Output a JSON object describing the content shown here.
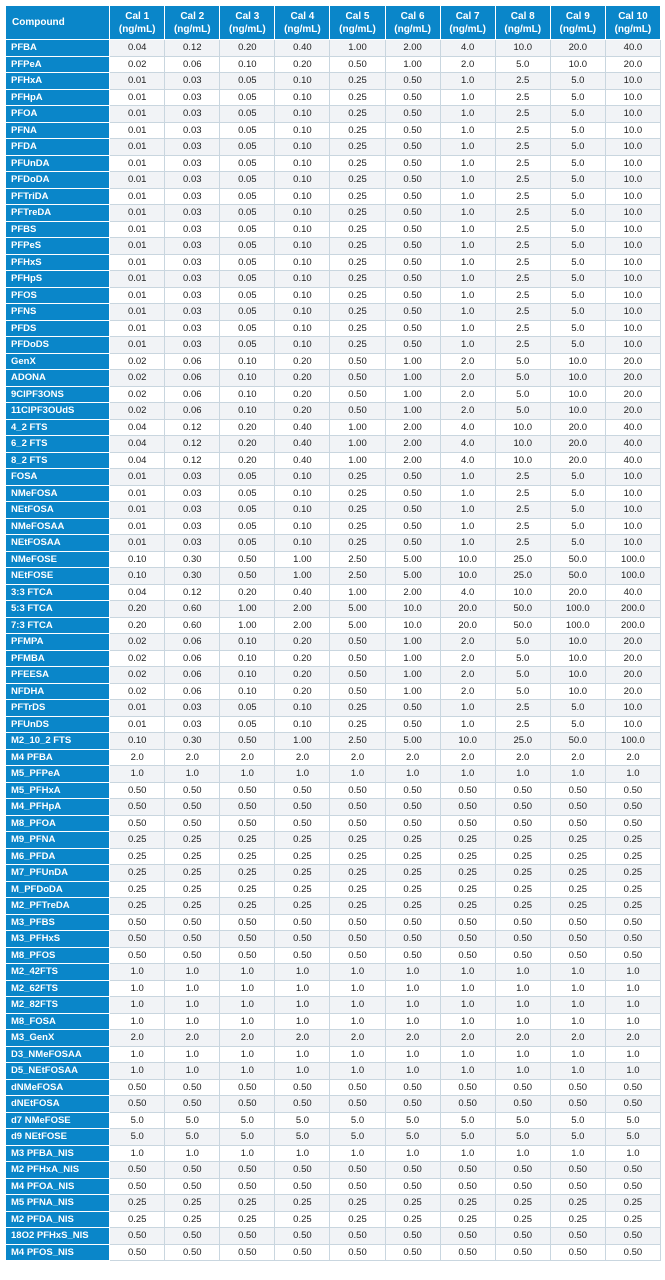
{
  "table": {
    "header_compound": "Compound",
    "cal_headers": [
      {
        "label": "Cal 1",
        "unit": "(ng/mL)"
      },
      {
        "label": "Cal 2",
        "unit": "(ng/mL)"
      },
      {
        "label": "Cal 3",
        "unit": "(ng/mL)"
      },
      {
        "label": "Cal 4",
        "unit": "(ng/mL)"
      },
      {
        "label": "Cal 5",
        "unit": "(ng/mL)"
      },
      {
        "label": "Cal 6",
        "unit": "(ng/mL)"
      },
      {
        "label": "Cal 7",
        "unit": "(ng/mL)"
      },
      {
        "label": "Cal 8",
        "unit": "(ng/mL)"
      },
      {
        "label": "Cal 9",
        "unit": "(ng/mL)"
      },
      {
        "label": "Cal 10",
        "unit": "(ng/mL)"
      }
    ],
    "rows": [
      {
        "name": "PFBA",
        "values": [
          "0.04",
          "0.12",
          "0.20",
          "0.40",
          "1.00",
          "2.00",
          "4.0",
          "10.0",
          "20.0",
          "40.0"
        ]
      },
      {
        "name": "PFPeA",
        "values": [
          "0.02",
          "0.06",
          "0.10",
          "0.20",
          "0.50",
          "1.00",
          "2.0",
          "5.0",
          "10.0",
          "20.0"
        ]
      },
      {
        "name": "PFHxA",
        "values": [
          "0.01",
          "0.03",
          "0.05",
          "0.10",
          "0.25",
          "0.50",
          "1.0",
          "2.5",
          "5.0",
          "10.0"
        ]
      },
      {
        "name": "PFHpA",
        "values": [
          "0.01",
          "0.03",
          "0.05",
          "0.10",
          "0.25",
          "0.50",
          "1.0",
          "2.5",
          "5.0",
          "10.0"
        ]
      },
      {
        "name": "PFOA",
        "values": [
          "0.01",
          "0.03",
          "0.05",
          "0.10",
          "0.25",
          "0.50",
          "1.0",
          "2.5",
          "5.0",
          "10.0"
        ]
      },
      {
        "name": "PFNA",
        "values": [
          "0.01",
          "0.03",
          "0.05",
          "0.10",
          "0.25",
          "0.50",
          "1.0",
          "2.5",
          "5.0",
          "10.0"
        ]
      },
      {
        "name": "PFDA",
        "values": [
          "0.01",
          "0.03",
          "0.05",
          "0.10",
          "0.25",
          "0.50",
          "1.0",
          "2.5",
          "5.0",
          "10.0"
        ]
      },
      {
        "name": "PFUnDA",
        "values": [
          "0.01",
          "0.03",
          "0.05",
          "0.10",
          "0.25",
          "0.50",
          "1.0",
          "2.5",
          "5.0",
          "10.0"
        ]
      },
      {
        "name": "PFDoDA",
        "values": [
          "0.01",
          "0.03",
          "0.05",
          "0.10",
          "0.25",
          "0.50",
          "1.0",
          "2.5",
          "5.0",
          "10.0"
        ]
      },
      {
        "name": "PFTriDA",
        "values": [
          "0.01",
          "0.03",
          "0.05",
          "0.10",
          "0.25",
          "0.50",
          "1.0",
          "2.5",
          "5.0",
          "10.0"
        ]
      },
      {
        "name": "PFTreDA",
        "values": [
          "0.01",
          "0.03",
          "0.05",
          "0.10",
          "0.25",
          "0.50",
          "1.0",
          "2.5",
          "5.0",
          "10.0"
        ]
      },
      {
        "name": "PFBS",
        "values": [
          "0.01",
          "0.03",
          "0.05",
          "0.10",
          "0.25",
          "0.50",
          "1.0",
          "2.5",
          "5.0",
          "10.0"
        ]
      },
      {
        "name": "PFPeS",
        "values": [
          "0.01",
          "0.03",
          "0.05",
          "0.10",
          "0.25",
          "0.50",
          "1.0",
          "2.5",
          "5.0",
          "10.0"
        ]
      },
      {
        "name": "PFHxS",
        "values": [
          "0.01",
          "0.03",
          "0.05",
          "0.10",
          "0.25",
          "0.50",
          "1.0",
          "2.5",
          "5.0",
          "10.0"
        ]
      },
      {
        "name": "PFHpS",
        "values": [
          "0.01",
          "0.03",
          "0.05",
          "0.10",
          "0.25",
          "0.50",
          "1.0",
          "2.5",
          "5.0",
          "10.0"
        ]
      },
      {
        "name": "PFOS",
        "values": [
          "0.01",
          "0.03",
          "0.05",
          "0.10",
          "0.25",
          "0.50",
          "1.0",
          "2.5",
          "5.0",
          "10.0"
        ]
      },
      {
        "name": "PFNS",
        "values": [
          "0.01",
          "0.03",
          "0.05",
          "0.10",
          "0.25",
          "0.50",
          "1.0",
          "2.5",
          "5.0",
          "10.0"
        ]
      },
      {
        "name": "PFDS",
        "values": [
          "0.01",
          "0.03",
          "0.05",
          "0.10",
          "0.25",
          "0.50",
          "1.0",
          "2.5",
          "5.0",
          "10.0"
        ]
      },
      {
        "name": "PFDoDS",
        "values": [
          "0.01",
          "0.03",
          "0.05",
          "0.10",
          "0.25",
          "0.50",
          "1.0",
          "2.5",
          "5.0",
          "10.0"
        ]
      },
      {
        "name": "GenX",
        "values": [
          "0.02",
          "0.06",
          "0.10",
          "0.20",
          "0.50",
          "1.00",
          "2.0",
          "5.0",
          "10.0",
          "20.0"
        ]
      },
      {
        "name": "ADONA",
        "values": [
          "0.02",
          "0.06",
          "0.10",
          "0.20",
          "0.50",
          "1.00",
          "2.0",
          "5.0",
          "10.0",
          "20.0"
        ]
      },
      {
        "name": "9ClPF3ONS",
        "values": [
          "0.02",
          "0.06",
          "0.10",
          "0.20",
          "0.50",
          "1.00",
          "2.0",
          "5.0",
          "10.0",
          "20.0"
        ]
      },
      {
        "name": "11ClPF3OUdS",
        "values": [
          "0.02",
          "0.06",
          "0.10",
          "0.20",
          "0.50",
          "1.00",
          "2.0",
          "5.0",
          "10.0",
          "20.0"
        ]
      },
      {
        "name": "4_2 FTS",
        "values": [
          "0.04",
          "0.12",
          "0.20",
          "0.40",
          "1.00",
          "2.00",
          "4.0",
          "10.0",
          "20.0",
          "40.0"
        ]
      },
      {
        "name": "6_2 FTS",
        "values": [
          "0.04",
          "0.12",
          "0.20",
          "0.40",
          "1.00",
          "2.00",
          "4.0",
          "10.0",
          "20.0",
          "40.0"
        ]
      },
      {
        "name": "8_2 FTS",
        "values": [
          "0.04",
          "0.12",
          "0.20",
          "0.40",
          "1.00",
          "2.00",
          "4.0",
          "10.0",
          "20.0",
          "40.0"
        ]
      },
      {
        "name": "FOSA",
        "values": [
          "0.01",
          "0.03",
          "0.05",
          "0.10",
          "0.25",
          "0.50",
          "1.0",
          "2.5",
          "5.0",
          "10.0"
        ]
      },
      {
        "name": "NMeFOSA",
        "values": [
          "0.01",
          "0.03",
          "0.05",
          "0.10",
          "0.25",
          "0.50",
          "1.0",
          "2.5",
          "5.0",
          "10.0"
        ]
      },
      {
        "name": "NEtFOSA",
        "values": [
          "0.01",
          "0.03",
          "0.05",
          "0.10",
          "0.25",
          "0.50",
          "1.0",
          "2.5",
          "5.0",
          "10.0"
        ]
      },
      {
        "name": "NMeFOSAA",
        "values": [
          "0.01",
          "0.03",
          "0.05",
          "0.10",
          "0.25",
          "0.50",
          "1.0",
          "2.5",
          "5.0",
          "10.0"
        ]
      },
      {
        "name": "NEtFOSAA",
        "values": [
          "0.01",
          "0.03",
          "0.05",
          "0.10",
          "0.25",
          "0.50",
          "1.0",
          "2.5",
          "5.0",
          "10.0"
        ]
      },
      {
        "name": "NMeFOSE",
        "values": [
          "0.10",
          "0.30",
          "0.50",
          "1.00",
          "2.50",
          "5.00",
          "10.0",
          "25.0",
          "50.0",
          "100.0"
        ]
      },
      {
        "name": "NEtFOSE",
        "values": [
          "0.10",
          "0.30",
          "0.50",
          "1.00",
          "2.50",
          "5.00",
          "10.0",
          "25.0",
          "50.0",
          "100.0"
        ]
      },
      {
        "name": "3:3 FTCA",
        "values": [
          "0.04",
          "0.12",
          "0.20",
          "0.40",
          "1.00",
          "2.00",
          "4.0",
          "10.0",
          "20.0",
          "40.0"
        ]
      },
      {
        "name": "5:3 FTCA",
        "values": [
          "0.20",
          "0.60",
          "1.00",
          "2.00",
          "5.00",
          "10.0",
          "20.0",
          "50.0",
          "100.0",
          "200.0"
        ]
      },
      {
        "name": "7:3 FTCA",
        "values": [
          "0.20",
          "0.60",
          "1.00",
          "2.00",
          "5.00",
          "10.0",
          "20.0",
          "50.0",
          "100.0",
          "200.0"
        ]
      },
      {
        "name": "PFMPA",
        "values": [
          "0.02",
          "0.06",
          "0.10",
          "0.20",
          "0.50",
          "1.00",
          "2.0",
          "5.0",
          "10.0",
          "20.0"
        ]
      },
      {
        "name": "PFMBA",
        "values": [
          "0.02",
          "0.06",
          "0.10",
          "0.20",
          "0.50",
          "1.00",
          "2.0",
          "5.0",
          "10.0",
          "20.0"
        ]
      },
      {
        "name": "PFEESA",
        "values": [
          "0.02",
          "0.06",
          "0.10",
          "0.20",
          "0.50",
          "1.00",
          "2.0",
          "5.0",
          "10.0",
          "20.0"
        ]
      },
      {
        "name": "NFDHA",
        "values": [
          "0.02",
          "0.06",
          "0.10",
          "0.20",
          "0.50",
          "1.00",
          "2.0",
          "5.0",
          "10.0",
          "20.0"
        ]
      },
      {
        "name": "PFTrDS",
        "values": [
          "0.01",
          "0.03",
          "0.05",
          "0.10",
          "0.25",
          "0.50",
          "1.0",
          "2.5",
          "5.0",
          "10.0"
        ]
      },
      {
        "name": "PFUnDS",
        "values": [
          "0.01",
          "0.03",
          "0.05",
          "0.10",
          "0.25",
          "0.50",
          "1.0",
          "2.5",
          "5.0",
          "10.0"
        ]
      },
      {
        "name": "M2_10_2 FTS",
        "values": [
          "0.10",
          "0.30",
          "0.50",
          "1.00",
          "2.50",
          "5.00",
          "10.0",
          "25.0",
          "50.0",
          "100.0"
        ]
      },
      {
        "name": "M4 PFBA",
        "values": [
          "2.0",
          "2.0",
          "2.0",
          "2.0",
          "2.0",
          "2.0",
          "2.0",
          "2.0",
          "2.0",
          "2.0"
        ]
      },
      {
        "name": "M5_PFPeA",
        "values": [
          "1.0",
          "1.0",
          "1.0",
          "1.0",
          "1.0",
          "1.0",
          "1.0",
          "1.0",
          "1.0",
          "1.0"
        ]
      },
      {
        "name": "M5_PFHxA",
        "values": [
          "0.50",
          "0.50",
          "0.50",
          "0.50",
          "0.50",
          "0.50",
          "0.50",
          "0.50",
          "0.50",
          "0.50"
        ]
      },
      {
        "name": "M4_PFHpA",
        "values": [
          "0.50",
          "0.50",
          "0.50",
          "0.50",
          "0.50",
          "0.50",
          "0.50",
          "0.50",
          "0.50",
          "0.50"
        ]
      },
      {
        "name": "M8_PFOA",
        "values": [
          "0.50",
          "0.50",
          "0.50",
          "0.50",
          "0.50",
          "0.50",
          "0.50",
          "0.50",
          "0.50",
          "0.50"
        ]
      },
      {
        "name": "M9_PFNA",
        "values": [
          "0.25",
          "0.25",
          "0.25",
          "0.25",
          "0.25",
          "0.25",
          "0.25",
          "0.25",
          "0.25",
          "0.25"
        ]
      },
      {
        "name": "M6_PFDA",
        "values": [
          "0.25",
          "0.25",
          "0.25",
          "0.25",
          "0.25",
          "0.25",
          "0.25",
          "0.25",
          "0.25",
          "0.25"
        ]
      },
      {
        "name": "M7_PFUnDA",
        "values": [
          "0.25",
          "0.25",
          "0.25",
          "0.25",
          "0.25",
          "0.25",
          "0.25",
          "0.25",
          "0.25",
          "0.25"
        ]
      },
      {
        "name": "M_PFDoDA",
        "values": [
          "0.25",
          "0.25",
          "0.25",
          "0.25",
          "0.25",
          "0.25",
          "0.25",
          "0.25",
          "0.25",
          "0.25"
        ]
      },
      {
        "name": "M2_PFTreDA",
        "values": [
          "0.25",
          "0.25",
          "0.25",
          "0.25",
          "0.25",
          "0.25",
          "0.25",
          "0.25",
          "0.25",
          "0.25"
        ]
      },
      {
        "name": "M3_PFBS",
        "values": [
          "0.50",
          "0.50",
          "0.50",
          "0.50",
          "0.50",
          "0.50",
          "0.50",
          "0.50",
          "0.50",
          "0.50"
        ]
      },
      {
        "name": "M3_PFHxS",
        "values": [
          "0.50",
          "0.50",
          "0.50",
          "0.50",
          "0.50",
          "0.50",
          "0.50",
          "0.50",
          "0.50",
          "0.50"
        ]
      },
      {
        "name": "M8_PFOS",
        "values": [
          "0.50",
          "0.50",
          "0.50",
          "0.50",
          "0.50",
          "0.50",
          "0.50",
          "0.50",
          "0.50",
          "0.50"
        ]
      },
      {
        "name": "M2_42FTS",
        "values": [
          "1.0",
          "1.0",
          "1.0",
          "1.0",
          "1.0",
          "1.0",
          "1.0",
          "1.0",
          "1.0",
          "1.0"
        ]
      },
      {
        "name": "M2_62FTS",
        "values": [
          "1.0",
          "1.0",
          "1.0",
          "1.0",
          "1.0",
          "1.0",
          "1.0",
          "1.0",
          "1.0",
          "1.0"
        ]
      },
      {
        "name": "M2_82FTS",
        "values": [
          "1.0",
          "1.0",
          "1.0",
          "1.0",
          "1.0",
          "1.0",
          "1.0",
          "1.0",
          "1.0",
          "1.0"
        ]
      },
      {
        "name": "M8_FOSA",
        "values": [
          "1.0",
          "1.0",
          "1.0",
          "1.0",
          "1.0",
          "1.0",
          "1.0",
          "1.0",
          "1.0",
          "1.0"
        ]
      },
      {
        "name": "M3_GenX",
        "values": [
          "2.0",
          "2.0",
          "2.0",
          "2.0",
          "2.0",
          "2.0",
          "2.0",
          "2.0",
          "2.0",
          "2.0"
        ]
      },
      {
        "name": "D3_NMeFOSAA",
        "values": [
          "1.0",
          "1.0",
          "1.0",
          "1.0",
          "1.0",
          "1.0",
          "1.0",
          "1.0",
          "1.0",
          "1.0"
        ]
      },
      {
        "name": "D5_NEtFOSAA",
        "values": [
          "1.0",
          "1.0",
          "1.0",
          "1.0",
          "1.0",
          "1.0",
          "1.0",
          "1.0",
          "1.0",
          "1.0"
        ]
      },
      {
        "name": "dNMeFOSA",
        "values": [
          "0.50",
          "0.50",
          "0.50",
          "0.50",
          "0.50",
          "0.50",
          "0.50",
          "0.50",
          "0.50",
          "0.50"
        ]
      },
      {
        "name": "dNEtFOSA",
        "values": [
          "0.50",
          "0.50",
          "0.50",
          "0.50",
          "0.50",
          "0.50",
          "0.50",
          "0.50",
          "0.50",
          "0.50"
        ]
      },
      {
        "name": "d7 NMeFOSE",
        "values": [
          "5.0",
          "5.0",
          "5.0",
          "5.0",
          "5.0",
          "5.0",
          "5.0",
          "5.0",
          "5.0",
          "5.0"
        ]
      },
      {
        "name": "d9 NEtFOSE",
        "values": [
          "5.0",
          "5.0",
          "5.0",
          "5.0",
          "5.0",
          "5.0",
          "5.0",
          "5.0",
          "5.0",
          "5.0"
        ]
      },
      {
        "name": "M3 PFBA_NIS",
        "values": [
          "1.0",
          "1.0",
          "1.0",
          "1.0",
          "1.0",
          "1.0",
          "1.0",
          "1.0",
          "1.0",
          "1.0"
        ]
      },
      {
        "name": "M2 PFHxA_NIS",
        "values": [
          "0.50",
          "0.50",
          "0.50",
          "0.50",
          "0.50",
          "0.50",
          "0.50",
          "0.50",
          "0.50",
          "0.50"
        ]
      },
      {
        "name": "M4 PFOA_NIS",
        "values": [
          "0.50",
          "0.50",
          "0.50",
          "0.50",
          "0.50",
          "0.50",
          "0.50",
          "0.50",
          "0.50",
          "0.50"
        ]
      },
      {
        "name": "M5 PFNA_NIS",
        "values": [
          "0.25",
          "0.25",
          "0.25",
          "0.25",
          "0.25",
          "0.25",
          "0.25",
          "0.25",
          "0.25",
          "0.25"
        ]
      },
      {
        "name": "M2 PFDA_NIS",
        "values": [
          "0.25",
          "0.25",
          "0.25",
          "0.25",
          "0.25",
          "0.25",
          "0.25",
          "0.25",
          "0.25",
          "0.25"
        ]
      },
      {
        "name": "18O2 PFHxS_NIS",
        "values": [
          "0.50",
          "0.50",
          "0.50",
          "0.50",
          "0.50",
          "0.50",
          "0.50",
          "0.50",
          "0.50",
          "0.50"
        ]
      },
      {
        "name": "M4 PFOS_NIS",
        "values": [
          "0.50",
          "0.50",
          "0.50",
          "0.50",
          "0.50",
          "0.50",
          "0.50",
          "0.50",
          "0.50",
          "0.50"
        ]
      }
    ]
  },
  "colors": {
    "header_blue": "#0A86C9",
    "row_stripe": "#f1f3f6",
    "grid_line": "#c9d6df"
  }
}
